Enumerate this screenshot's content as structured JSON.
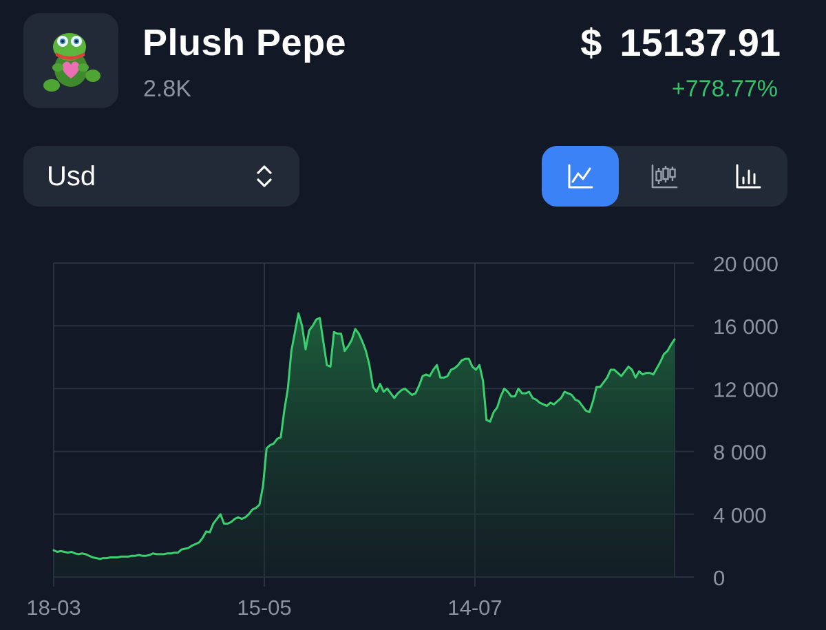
{
  "header": {
    "title": "Plush Pepe",
    "subtitle": "2.8K",
    "price_currency": "$",
    "price_value": "15137.91",
    "change": "+778.77%",
    "avatar_icon": "plush-pepe-frog-icon"
  },
  "controls": {
    "currency_label": "Usd",
    "currency_icon": "chevron-up-down-icon",
    "chart_types": [
      {
        "name": "line-chart",
        "icon": "line-chart-icon",
        "active": true
      },
      {
        "name": "candlestick-chart",
        "icon": "candlestick-chart-icon",
        "active": false
      },
      {
        "name": "bar-chart",
        "icon": "bar-chart-icon",
        "active": false
      }
    ]
  },
  "colors": {
    "background": "#121826",
    "panel": "#222a37",
    "accent": "#3b82f6",
    "positive": "#33c26a",
    "line": "#3ad06e",
    "grid": "#2a3140",
    "muted": "#8b93a3"
  },
  "chart_data": {
    "type": "area",
    "title": "",
    "xlabel": "",
    "ylabel": "",
    "x_ticks": [
      "18-03",
      "15-05",
      "14-07"
    ],
    "y_ticks": [
      "0",
      "4 000",
      "8 000",
      "12 000",
      "16 000",
      "20 000"
    ],
    "ylim": [
      0,
      20000
    ],
    "grid": true,
    "series": [
      {
        "values": [
          1700,
          1600,
          1650,
          1600,
          1550,
          1600,
          1500,
          1450,
          1500,
          1450,
          1350,
          1250,
          1200,
          1150,
          1200,
          1200,
          1250,
          1250,
          1250,
          1300,
          1300,
          1300,
          1350,
          1350,
          1400,
          1350,
          1350,
          1400,
          1500,
          1450,
          1450,
          1450,
          1500,
          1500,
          1550,
          1550,
          1750,
          1800,
          1850,
          2000,
          2100,
          2200,
          2500,
          2900,
          2850,
          3400,
          3700,
          4000,
          3400,
          3400,
          3500,
          3700,
          3800,
          3700,
          3800,
          4000,
          4300,
          4400,
          4600,
          5800,
          8200,
          8400,
          8500,
          8800,
          8900,
          10600,
          12000,
          14400,
          15600,
          16800,
          16000,
          14500,
          15700,
          16000,
          16400,
          16500,
          15000,
          13500,
          13400,
          15600,
          15500,
          15500,
          14400,
          14700,
          15100,
          15800,
          15500,
          15000,
          14400,
          13500,
          12100,
          11800,
          12300,
          11800,
          12000,
          11700,
          11400,
          11700,
          11900,
          12000,
          11800,
          11600,
          11700,
          12200,
          12800,
          12900,
          12800,
          13200,
          13500,
          12700,
          12700,
          12800,
          13200,
          13300,
          13500,
          13800,
          13900,
          13900,
          13400,
          13200,
          13500,
          12500,
          10000,
          9900,
          10500,
          10800,
          11500,
          12000,
          11800,
          11500,
          11500,
          12000,
          11700,
          11700,
          11800,
          11400,
          11300,
          11100,
          11000,
          10900,
          11100,
          11000,
          11200,
          11400,
          11800,
          11700,
          11600,
          11300,
          11200,
          10900,
          10600,
          10500,
          11200,
          12100,
          12100,
          12400,
          12700,
          13200,
          13200,
          13000,
          12800,
          13100,
          13400,
          13200,
          12700,
          13100,
          12900,
          13000,
          13000,
          12900,
          13300,
          13700,
          14200,
          14400,
          14800,
          15137
        ]
      }
    ]
  }
}
